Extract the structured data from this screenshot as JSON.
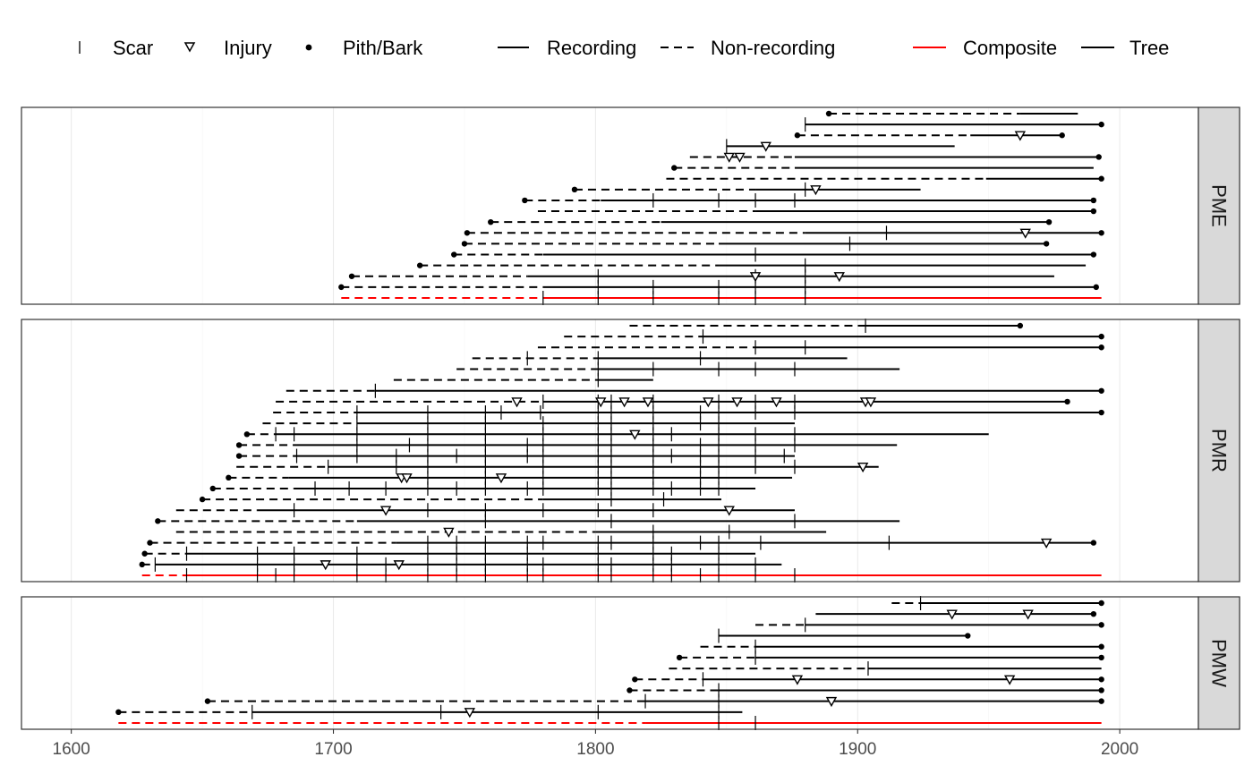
{
  "legend": {
    "symbol_items": [
      {
        "label": "Scar",
        "icon": "scar-tick-icon"
      },
      {
        "label": "Injury",
        "icon": "injury-triangle-icon"
      },
      {
        "label": "Pith/Bark",
        "icon": "pith-bark-dot-icon"
      }
    ],
    "line_items": [
      {
        "label": "Recording",
        "style": "solid"
      },
      {
        "label": "Non-recording",
        "style": "dashed"
      }
    ],
    "color_items": [
      {
        "label": "Composite",
        "color": "#e41a1c"
      },
      {
        "label": "Tree",
        "color": "#000000"
      }
    ]
  },
  "colors": {
    "tree": "#000000",
    "composite": "#ff0000",
    "panel_border": "#333333",
    "grid": "#ebebeb",
    "strip_fill": "#d9d9d9"
  },
  "chart_data": {
    "type": "fire-history",
    "xlim": [
      1581,
      2030
    ],
    "x_ticks": [
      1600,
      1700,
      1800,
      1900,
      2000
    ],
    "x_tick_labels": [
      "1600",
      "1700",
      "1800",
      "1900",
      "2000"
    ],
    "grid": true,
    "legend_position": "top",
    "panels": [
      {
        "name": "PME",
        "composite": {
          "start": 1703,
          "recording_start": 1780,
          "end": 1993,
          "scars": [
            1780,
            1801,
            1822,
            1847,
            1861,
            1880
          ]
        },
        "series": [
          {
            "start": 1703,
            "rec": 1780,
            "end": 1991,
            "start_dot": true,
            "end_dot": true,
            "scars": [
              1801,
              1822,
              1847,
              1861,
              1880
            ],
            "injuries": []
          },
          {
            "start": 1707,
            "rec": 1774,
            "end": 1975,
            "start_dot": true,
            "end_dot": false,
            "scars": [
              1801,
              1861,
              1880
            ],
            "injuries": [
              1861,
              1893
            ]
          },
          {
            "start": 1733,
            "rec": 1847,
            "end": 1987,
            "start_dot": true,
            "end_dot": false,
            "scars": [
              1880
            ],
            "injuries": []
          },
          {
            "start": 1746,
            "rec": 1780,
            "end": 1990,
            "start_dot": true,
            "end_dot": true,
            "scars": [
              1861
            ],
            "injuries": []
          },
          {
            "start": 1750,
            "rec": 1847,
            "end": 1972,
            "start_dot": true,
            "end_dot": true,
            "scars": [
              1897
            ],
            "injuries": []
          },
          {
            "start": 1751,
            "rec": 1880,
            "end": 1993,
            "start_dot": true,
            "end_dot": true,
            "scars": [
              1911
            ],
            "injuries": [
              1964
            ]
          },
          {
            "start": 1760,
            "rec": 1825,
            "end": 1973,
            "start_dot": true,
            "end_dot": true,
            "scars": [],
            "injuries": []
          },
          {
            "start": 1778,
            "rec": 1861,
            "end": 1990,
            "start_dot": false,
            "end_dot": true,
            "scars": [],
            "injuries": []
          },
          {
            "start": 1773,
            "rec": 1802,
            "end": 1990,
            "start_dot": true,
            "end_dot": true,
            "scars": [
              1822,
              1847,
              1861,
              1876
            ],
            "injuries": []
          },
          {
            "start": 1792,
            "rec": 1861,
            "end": 1924,
            "start_dot": true,
            "end_dot": false,
            "scars": [
              1880
            ],
            "injuries": [
              1884
            ]
          },
          {
            "start": 1827,
            "rec": 1949,
            "end": 1993,
            "start_dot": false,
            "end_dot": true,
            "scars": [],
            "injuries": []
          },
          {
            "start": 1830,
            "rec": 1876,
            "end": 1990,
            "start_dot": true,
            "end_dot": false,
            "scars": [],
            "injuries": []
          },
          {
            "start": 1836,
            "rec": 1876,
            "end": 1992,
            "start_dot": false,
            "end_dot": true,
            "scars": [],
            "injuries": [
              1851,
              1855
            ]
          },
          {
            "start": 1850,
            "rec": 1850,
            "end": 1937,
            "start_dot": false,
            "end_dot": false,
            "scars": [
              1850
            ],
            "injuries": [
              1865
            ]
          },
          {
            "start": 1877,
            "rec": 1943,
            "end": 1978,
            "start_dot": true,
            "end_dot": true,
            "scars": [],
            "injuries": [
              1962
            ]
          },
          {
            "start": 1880,
            "rec": 1880,
            "end": 1993,
            "start_dot": false,
            "end_dot": true,
            "scars": [
              1880
            ],
            "injuries": []
          },
          {
            "start": 1889,
            "rec": 1962,
            "end": 1984,
            "start_dot": true,
            "end_dot": false,
            "scars": [],
            "injuries": []
          }
        ]
      },
      {
        "name": "PMR",
        "composite": {
          "start": 1627,
          "recording_start": 1644,
          "end": 1993,
          "scars": [
            1644,
            1671,
            1678,
            1685,
            1709,
            1720,
            1736,
            1747,
            1758,
            1774,
            1780,
            1801,
            1806,
            1822,
            1829,
            1840,
            1847,
            1861,
            1876
          ]
        },
        "series": [
          {
            "start": 1627,
            "rec": 1632,
            "end": 1871,
            "start_dot": true,
            "end_dot": false,
            "scars": [
              1632,
              1671,
              1685,
              1709,
              1720,
              1736,
              1747,
              1758,
              1774,
              1780,
              1801,
              1806,
              1822,
              1829,
              1847,
              1861
            ],
            "injuries": [
              1697,
              1725
            ]
          },
          {
            "start": 1628,
            "rec": 1644,
            "end": 1861,
            "start_dot": true,
            "end_dot": false,
            "scars": [
              1644,
              1671,
              1685,
              1709,
              1736,
              1747,
              1758,
              1774,
              1801,
              1822,
              1829,
              1847
            ],
            "injuries": []
          },
          {
            "start": 1630,
            "rec": 1724,
            "end": 1990,
            "start_dot": true,
            "end_dot": true,
            "scars": [
              1736,
              1747,
              1758,
              1774,
              1780,
              1801,
              1806,
              1822,
              1840,
              1847,
              1863,
              1912
            ],
            "injuries": [
              1972
            ]
          },
          {
            "start": 1640,
            "rec": 1800,
            "end": 1888,
            "start_dot": false,
            "end_dot": false,
            "scars": [
              1822,
              1851
            ],
            "injuries": [
              1744
            ]
          },
          {
            "start": 1633,
            "rec": 1709,
            "end": 1916,
            "start_dot": true,
            "end_dot": false,
            "scars": [
              1758,
              1806,
              1876
            ],
            "injuries": []
          },
          {
            "start": 1640,
            "rec": 1671,
            "end": 1876,
            "start_dot": false,
            "end_dot": false,
            "scars": [
              1685,
              1736,
              1758,
              1780,
              1801,
              1822
            ],
            "injuries": [
              1720,
              1851
            ]
          },
          {
            "start": 1650,
            "rec": 1780,
            "end": 1848,
            "start_dot": true,
            "end_dot": false,
            "scars": [
              1806,
              1826
            ],
            "injuries": []
          },
          {
            "start": 1654,
            "rec": 1685,
            "end": 1861,
            "start_dot": true,
            "end_dot": false,
            "scars": [
              1693,
              1706,
              1720,
              1736,
              1747,
              1758,
              1774,
              1780,
              1801,
              1806,
              1822,
              1829,
              1840,
              1847
            ],
            "injuries": []
          },
          {
            "start": 1660,
            "rec": 1683,
            "end": 1875,
            "start_dot": true,
            "end_dot": false,
            "scars": [
              1736,
              1758,
              1780,
              1801,
              1806,
              1822,
              1840,
              1847
            ],
            "injuries": [
              1726,
              1728,
              1764
            ]
          },
          {
            "start": 1663,
            "rec": 1698,
            "end": 1908,
            "start_dot": false,
            "end_dot": false,
            "scars": [
              1698,
              1724,
              1736,
              1758,
              1780,
              1801,
              1806,
              1822,
              1840,
              1847,
              1861,
              1876
            ],
            "injuries": [
              1902
            ]
          },
          {
            "start": 1664,
            "rec": 1686,
            "end": 1876,
            "start_dot": true,
            "end_dot": false,
            "scars": [
              1686,
              1709,
              1724,
              1736,
              1747,
              1758,
              1774,
              1780,
              1801,
              1806,
              1822,
              1829,
              1840,
              1847,
              1861,
              1872
            ],
            "injuries": []
          },
          {
            "start": 1664,
            "rec": 1686,
            "end": 1915,
            "start_dot": true,
            "end_dot": false,
            "scars": [
              1709,
              1729,
              1736,
              1758,
              1774,
              1780,
              1801,
              1806,
              1822,
              1840,
              1847,
              1861,
              1876
            ],
            "injuries": []
          },
          {
            "start": 1667,
            "rec": 1678,
            "end": 1950,
            "start_dot": true,
            "end_dot": false,
            "scars": [
              1678,
              1685,
              1709,
              1736,
              1758,
              1780,
              1801,
              1806,
              1822,
              1829,
              1847,
              1861,
              1876
            ],
            "injuries": [
              1815
            ]
          },
          {
            "start": 1673,
            "rec": 1709,
            "end": 1876,
            "start_dot": false,
            "end_dot": false,
            "scars": [
              1709,
              1736,
              1758,
              1780,
              1801,
              1806,
              1822,
              1840,
              1847
            ],
            "injuries": []
          },
          {
            "start": 1677,
            "rec": 1709,
            "end": 1993,
            "start_dot": false,
            "end_dot": true,
            "scars": [
              1709,
              1736,
              1758,
              1764,
              1779,
              1801,
              1806,
              1822,
              1840,
              1847,
              1861,
              1876
            ],
            "injuries": []
          },
          {
            "start": 1678,
            "rec": 1780,
            "end": 1980,
            "start_dot": false,
            "end_dot": true,
            "scars": [
              1780,
              1801,
              1806,
              1822,
              1847,
              1861,
              1876
            ],
            "injuries": [
              1770,
              1802,
              1811,
              1820,
              1843,
              1854,
              1869,
              1903,
              1905
            ]
          },
          {
            "start": 1682,
            "rec": 1716,
            "end": 1993,
            "start_dot": false,
            "end_dot": true,
            "scars": [
              1716
            ],
            "injuries": []
          },
          {
            "start": 1723,
            "rec": 1801,
            "end": 1822,
            "start_dot": false,
            "end_dot": false,
            "scars": [
              1801
            ],
            "injuries": []
          },
          {
            "start": 1747,
            "rec": 1801,
            "end": 1916,
            "start_dot": false,
            "end_dot": false,
            "scars": [
              1801,
              1822,
              1847,
              1861,
              1876
            ],
            "injuries": []
          },
          {
            "start": 1753,
            "rec": 1801,
            "end": 1896,
            "start_dot": false,
            "end_dot": false,
            "scars": [
              1774,
              1801,
              1840
            ],
            "injuries": []
          },
          {
            "start": 1778,
            "rec": 1861,
            "end": 1993,
            "start_dot": false,
            "end_dot": true,
            "scars": [
              1861,
              1880
            ],
            "injuries": []
          },
          {
            "start": 1788,
            "rec": 1841,
            "end": 1993,
            "start_dot": false,
            "end_dot": true,
            "scars": [
              1841
            ],
            "injuries": []
          },
          {
            "start": 1813,
            "rec": 1903,
            "end": 1962,
            "start_dot": false,
            "end_dot": true,
            "scars": [
              1903
            ],
            "injuries": []
          }
        ]
      },
      {
        "name": "PMW",
        "composite": {
          "start": 1618,
          "recording_start": 1819,
          "end": 1993,
          "scars": [
            1847,
            1861
          ]
        },
        "series": [
          {
            "start": 1618,
            "rec": 1669,
            "end": 1856,
            "start_dot": true,
            "end_dot": false,
            "scars": [
              1669,
              1741,
              1801,
              1847
            ],
            "injuries": [
              1752
            ]
          },
          {
            "start": 1652,
            "rec": 1819,
            "end": 1993,
            "start_dot": true,
            "end_dot": true,
            "scars": [
              1819,
              1847
            ],
            "injuries": [
              1890
            ]
          },
          {
            "start": 1813,
            "rec": 1847,
            "end": 1993,
            "start_dot": true,
            "end_dot": true,
            "scars": [
              1847
            ],
            "injuries": []
          },
          {
            "start": 1815,
            "rec": 1841,
            "end": 1993,
            "start_dot": true,
            "end_dot": true,
            "scars": [
              1841
            ],
            "injuries": [
              1877,
              1958
            ]
          },
          {
            "start": 1828,
            "rec": 1904,
            "end": 1993,
            "start_dot": false,
            "end_dot": false,
            "scars": [
              1904
            ],
            "injuries": []
          },
          {
            "start": 1832,
            "rec": 1861,
            "end": 1993,
            "start_dot": true,
            "end_dot": true,
            "scars": [
              1861
            ],
            "injuries": []
          },
          {
            "start": 1840,
            "rec": 1861,
            "end": 1993,
            "start_dot": false,
            "end_dot": true,
            "scars": [
              1861
            ],
            "injuries": []
          },
          {
            "start": 1847,
            "rec": 1847,
            "end": 1942,
            "start_dot": false,
            "end_dot": true,
            "scars": [
              1847
            ],
            "injuries": []
          },
          {
            "start": 1861,
            "rec": 1880,
            "end": 1993,
            "start_dot": false,
            "end_dot": true,
            "scars": [
              1880
            ],
            "injuries": []
          },
          {
            "start": 1884,
            "rec": 1884,
            "end": 1990,
            "start_dot": false,
            "end_dot": true,
            "scars": [],
            "injuries": [
              1936,
              1965
            ]
          },
          {
            "start": 1913,
            "rec": 1924,
            "end": 1993,
            "start_dot": false,
            "end_dot": true,
            "scars": [
              1924
            ],
            "injuries": []
          }
        ]
      }
    ]
  }
}
